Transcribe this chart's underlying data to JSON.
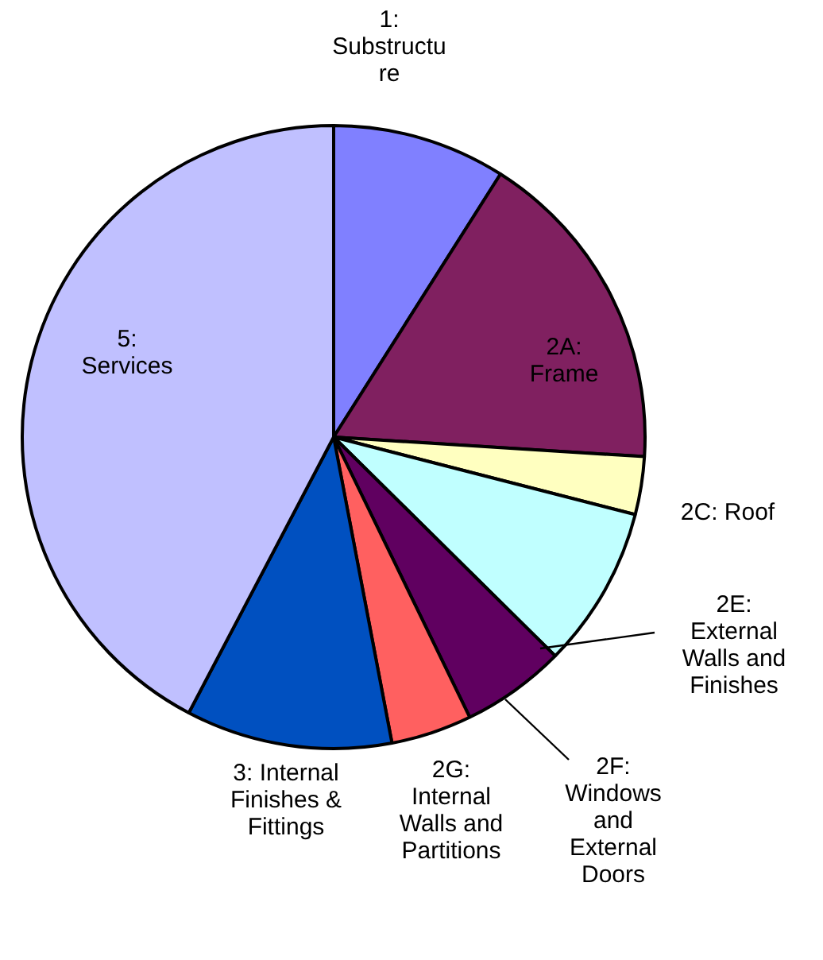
{
  "chart_data": {
    "type": "pie",
    "categories": [
      "1: Substructure",
      "2A: Frame",
      "2C: Roof",
      "2E: External Walls and Finishes",
      "2F: Windows and External Doors",
      "2G: Internal Walls and Partitions",
      "3: Internal Finishes & Fittings",
      "5: Services"
    ],
    "values": [
      9,
      17,
      3,
      8.4,
      5.4,
      4.2,
      10.7,
      42.3
    ],
    "colors": [
      "#8080ff",
      "#802060",
      "#ffffc0",
      "#c0ffff",
      "#600060",
      "#ff6060",
      "#0050c0",
      "#c0c0ff"
    ],
    "legend": false
  }
}
